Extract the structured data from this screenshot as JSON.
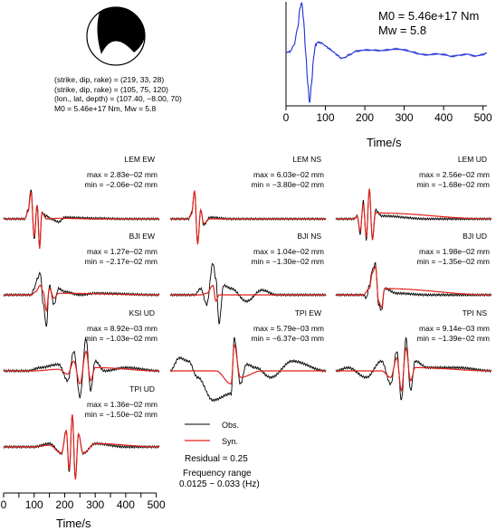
{
  "source": {
    "focal": [
      "(strike, dip, rake) = (219, 33, 28)",
      "(strike, dip, rake) = (105, 75, 120)",
      "(lon., lat, depth) = (107.40, −8.00, 70)",
      "M0 = 5.46e+17 Nm, Mw = 5.8"
    ],
    "m0_label": "M0 = 5.46e+17 Nm",
    "mw_label": "Mw = 5.8"
  },
  "legend": {
    "obs": "Obs.",
    "syn": "Syn."
  },
  "residual": "Residual = 0.25",
  "freq_title": "Frequency range",
  "freq_values": "0.0125 − 0.033 (Hz)",
  "colors": {
    "observed": "#000000",
    "synthetic": "#e0201b",
    "stf": "#1f2fd8"
  },
  "chart_data": [
    {
      "type": "line",
      "name": "source-time-function",
      "xlabel": "Time/s",
      "xlim": [
        0,
        510
      ],
      "xticks": [
        0,
        100,
        200,
        300,
        400,
        500
      ],
      "x": [
        0,
        10,
        20,
        30,
        35,
        40,
        45,
        50,
        55,
        60,
        65,
        70,
        75,
        80,
        90,
        100,
        110,
        120,
        130,
        140,
        150,
        160,
        180,
        200,
        220,
        240,
        260,
        280,
        300,
        320,
        340,
        360,
        380,
        400,
        420,
        440,
        460,
        480,
        500,
        510
      ],
      "values": [
        0,
        0.02,
        0.15,
        0.5,
        0.85,
        1.0,
        0.6,
        0.0,
        -0.6,
        -1.0,
        -0.6,
        -0.1,
        0.15,
        0.2,
        0.18,
        0.12,
        0.06,
        0.0,
        -0.06,
        -0.12,
        -0.1,
        -0.04,
        0.04,
        0.06,
        0.05,
        0.03,
        0.04,
        0.06,
        0.05,
        0.02,
        -0.02,
        -0.04,
        -0.03,
        -0.05,
        -0.09,
        -0.06,
        -0.03,
        -0.06,
        -0.03,
        0.0
      ]
    },
    {
      "type": "line",
      "name": "waveform-fits",
      "xlabel": "Time/s",
      "xlim": [
        0,
        510
      ],
      "xticks": [
        0,
        50,
        100,
        150,
        200,
        250,
        300,
        350,
        400,
        450,
        500
      ],
      "panels": [
        {
          "label": "LEM EW",
          "max": "max = 2.83e−02 mm",
          "min": "min = −2.06e−02 mm",
          "obs": [
            [
              0,
              0
            ],
            [
              70,
              0
            ],
            [
              80,
              0.3
            ],
            [
              90,
              1.0
            ],
            [
              100,
              -0.7
            ],
            [
              110,
              0.5
            ],
            [
              118,
              -0.9
            ],
            [
              125,
              0.2
            ],
            [
              140,
              0.1
            ],
            [
              155,
              0
            ],
            [
              180,
              -0.1
            ],
            [
              200,
              0.05
            ],
            [
              300,
              0.02
            ],
            [
              400,
              0
            ],
            [
              510,
              0
            ]
          ],
          "syn": [
            [
              0,
              0
            ],
            [
              70,
              0
            ],
            [
              80,
              0.25
            ],
            [
              90,
              0.9
            ],
            [
              100,
              -0.6
            ],
            [
              110,
              0.45
            ],
            [
              118,
              -1.0
            ],
            [
              125,
              0.2
            ],
            [
              140,
              0
            ],
            [
              180,
              0.02
            ],
            [
              300,
              0
            ],
            [
              510,
              0
            ]
          ]
        },
        {
          "label": "LEM NS",
          "max": "max = 6.03e−02 mm",
          "min": "min = −3.80e−02 mm",
          "obs": [
            [
              0,
              0
            ],
            [
              60,
              0
            ],
            [
              70,
              0.2
            ],
            [
              80,
              0.9
            ],
            [
              90,
              -0.8
            ],
            [
              100,
              0.3
            ],
            [
              110,
              -0.2
            ],
            [
              130,
              0.05
            ],
            [
              200,
              0
            ],
            [
              510,
              0
            ]
          ],
          "syn": [
            [
              0,
              0
            ],
            [
              60,
              0
            ],
            [
              70,
              0.15
            ],
            [
              80,
              0.95
            ],
            [
              90,
              -0.85
            ],
            [
              100,
              0.3
            ],
            [
              110,
              -0.15
            ],
            [
              130,
              0
            ],
            [
              510,
              0
            ]
          ]
        },
        {
          "label": "LEM UD",
          "max": "max = 2.56e−02 mm",
          "min": "min = −1.68e−02 mm",
          "obs": [
            [
              0,
              0
            ],
            [
              60,
              0
            ],
            [
              70,
              0.1
            ],
            [
              80,
              -0.5
            ],
            [
              90,
              0.6
            ],
            [
              100,
              -0.7
            ],
            [
              110,
              1.0
            ],
            [
              120,
              -0.7
            ],
            [
              130,
              0.3
            ],
            [
              150,
              0.1
            ],
            [
              300,
              0
            ],
            [
              510,
              0
            ]
          ],
          "syn": [
            [
              0,
              0
            ],
            [
              60,
              0
            ],
            [
              70,
              0.1
            ],
            [
              80,
              -0.4
            ],
            [
              90,
              0.5
            ],
            [
              100,
              -0.6
            ],
            [
              110,
              1.0
            ],
            [
              120,
              -0.7
            ],
            [
              130,
              0.2
            ],
            [
              510,
              0
            ]
          ]
        },
        {
          "label": "BJI EW",
          "max": "max = 1.27e−02 mm",
          "min": "min = −2.17e−02 mm",
          "obs": [
            [
              0,
              0
            ],
            [
              90,
              0
            ],
            [
              100,
              0.2
            ],
            [
              110,
              0.5
            ],
            [
              120,
              0.7
            ],
            [
              130,
              -0.3
            ],
            [
              140,
              -1.0
            ],
            [
              150,
              0.3
            ],
            [
              165,
              -0.3
            ],
            [
              180,
              0.2
            ],
            [
              200,
              0.1
            ],
            [
              250,
              0
            ],
            [
              300,
              0.05
            ],
            [
              510,
              0
            ]
          ],
          "syn": [
            [
              0,
              0
            ],
            [
              90,
              0
            ],
            [
              105,
              0.1
            ],
            [
              120,
              0.3
            ],
            [
              130,
              0.1
            ],
            [
              140,
              -0.5
            ],
            [
              150,
              0.2
            ],
            [
              165,
              -0.1
            ],
            [
              180,
              0.05
            ],
            [
              510,
              0
            ]
          ]
        },
        {
          "label": "BJI NS",
          "max": "max = 1.04e−02 mm",
          "min": "min = −1.30e−02 mm",
          "obs": [
            [
              0,
              0
            ],
            [
              80,
              0
            ],
            [
              100,
              0.2
            ],
            [
              120,
              -0.3
            ],
            [
              140,
              1.0
            ],
            [
              150,
              0.5
            ],
            [
              160,
              -0.9
            ],
            [
              175,
              0.3
            ],
            [
              200,
              0.2
            ],
            [
              250,
              -0.2
            ],
            [
              300,
              0.15
            ],
            [
              350,
              0
            ],
            [
              400,
              0
            ],
            [
              510,
              0
            ]
          ],
          "syn": [
            [
              0,
              0
            ],
            [
              100,
              0
            ],
            [
              120,
              0.05
            ],
            [
              140,
              0.3
            ],
            [
              150,
              -0.2
            ],
            [
              160,
              0.0
            ],
            [
              510,
              0
            ]
          ]
        },
        {
          "label": "BJI UD",
          "max": "max = 1.98e−02 mm",
          "min": "min = −1.35e−02 mm",
          "obs": [
            [
              0,
              0
            ],
            [
              90,
              0
            ],
            [
              100,
              -0.1
            ],
            [
              110,
              0.3
            ],
            [
              120,
              0.8
            ],
            [
              130,
              1.0
            ],
            [
              140,
              -0.3
            ],
            [
              150,
              -0.5
            ],
            [
              160,
              0.2
            ],
            [
              200,
              0.05
            ],
            [
              300,
              0
            ],
            [
              510,
              0
            ]
          ],
          "syn": [
            [
              0,
              0
            ],
            [
              90,
              0
            ],
            [
              110,
              0.2
            ],
            [
              120,
              0.7
            ],
            [
              130,
              0.9
            ],
            [
              140,
              -0.2
            ],
            [
              150,
              -0.4
            ],
            [
              160,
              0.2
            ],
            [
              510,
              0
            ]
          ]
        },
        {
          "label": "KSI UD",
          "max": "max = 8.92e−03 mm",
          "min": "min = −1.03e−02 mm",
          "obs": [
            [
              0,
              0
            ],
            [
              80,
              0
            ],
            [
              120,
              0.1
            ],
            [
              180,
              0.2
            ],
            [
              210,
              -0.3
            ],
            [
              230,
              0.6
            ],
            [
              250,
              -0.8
            ],
            [
              270,
              1.0
            ],
            [
              285,
              -0.6
            ],
            [
              300,
              0.3
            ],
            [
              330,
              0
            ],
            [
              400,
              0.1
            ],
            [
              510,
              0
            ]
          ],
          "syn": [
            [
              0,
              0
            ],
            [
              100,
              0
            ],
            [
              180,
              0.05
            ],
            [
              210,
              -0.1
            ],
            [
              230,
              0.3
            ],
            [
              250,
              -0.4
            ],
            [
              270,
              0.6
            ],
            [
              285,
              -0.3
            ],
            [
              300,
              0.1
            ],
            [
              510,
              0
            ]
          ]
        },
        {
          "label": "TPI EW",
          "max": "max = 5.79e−03 mm",
          "min": "min = −6.37e−03 mm",
          "obs": [
            [
              0,
              0
            ],
            [
              30,
              0.4
            ],
            [
              60,
              0.3
            ],
            [
              90,
              -0.2
            ],
            [
              140,
              -0.9
            ],
            [
              200,
              -0.7
            ],
            [
              210,
              1.0
            ],
            [
              230,
              -0.4
            ],
            [
              250,
              0.2
            ],
            [
              280,
              0.1
            ],
            [
              330,
              -0.2
            ],
            [
              400,
              0.3
            ],
            [
              510,
              0
            ]
          ],
          "syn": [
            [
              0,
              0
            ],
            [
              150,
              0
            ],
            [
              200,
              -0.4
            ],
            [
              210,
              0.8
            ],
            [
              230,
              -0.2
            ],
            [
              300,
              0
            ],
            [
              510,
              0
            ]
          ]
        },
        {
          "label": "TPI NS",
          "max": "max = 9.14e−03 mm",
          "min": "min = −1.39e−02 mm",
          "obs": [
            [
              0,
              0
            ],
            [
              40,
              0.1
            ],
            [
              100,
              -0.2
            ],
            [
              150,
              0.3
            ],
            [
              180,
              -0.4
            ],
            [
              200,
              0.6
            ],
            [
              215,
              -0.9
            ],
            [
              230,
              1.0
            ],
            [
              245,
              -0.6
            ],
            [
              260,
              0.3
            ],
            [
              300,
              0.1
            ],
            [
              400,
              0.1
            ],
            [
              510,
              0
            ]
          ],
          "syn": [
            [
              0,
              0
            ],
            [
              150,
              0
            ],
            [
              180,
              -0.2
            ],
            [
              200,
              0.4
            ],
            [
              215,
              -0.6
            ],
            [
              230,
              0.7
            ],
            [
              245,
              -0.3
            ],
            [
              260,
              0.1
            ],
            [
              510,
              0
            ]
          ]
        },
        {
          "label": "TPI UD",
          "max": "max = 1.36e−02 mm",
          "min": "min = −1.50e−02 mm",
          "obs": [
            [
              0,
              0
            ],
            [
              100,
              0
            ],
            [
              150,
              0.1
            ],
            [
              190,
              -0.2
            ],
            [
              205,
              0.5
            ],
            [
              215,
              -0.8
            ],
            [
              225,
              1.0
            ],
            [
              235,
              -1.0
            ],
            [
              245,
              0.4
            ],
            [
              260,
              -0.2
            ],
            [
              300,
              0.1
            ],
            [
              400,
              0
            ],
            [
              510,
              0
            ]
          ],
          "syn": [
            [
              0,
              0
            ],
            [
              100,
              0
            ],
            [
              150,
              0.05
            ],
            [
              190,
              -0.2
            ],
            [
              205,
              0.5
            ],
            [
              215,
              -0.7
            ],
            [
              225,
              1.0
            ],
            [
              235,
              -1.0
            ],
            [
              245,
              0.4
            ],
            [
              260,
              -0.2
            ],
            [
              300,
              0.1
            ],
            [
              510,
              0
            ]
          ]
        }
      ]
    }
  ]
}
